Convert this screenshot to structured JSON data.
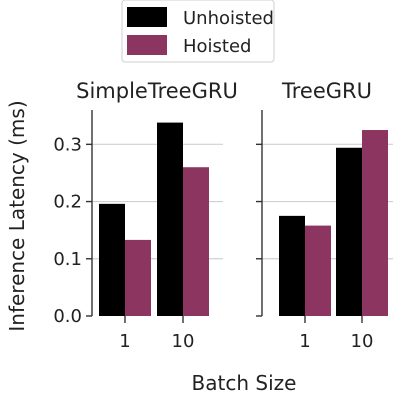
{
  "chart_data": {
    "type": "bar",
    "grid": "horizontal",
    "legend_position": "top-center",
    "xlabel": "Batch Size",
    "ylabel": "Inference Latency (ms)",
    "ylim": [
      0,
      0.36
    ],
    "yticks": [
      0.0,
      0.1,
      0.2,
      0.3
    ],
    "ytick_labels": [
      "0.0",
      "0.1",
      "0.2",
      "0.3"
    ],
    "categories": [
      "1",
      "10"
    ],
    "series_styles": [
      {
        "name": "Unhoisted",
        "color": "#000000"
      },
      {
        "name": "Hoisted",
        "color": "#8B3560"
      }
    ],
    "panels": [
      {
        "title": "SimpleTreeGRU",
        "series": [
          {
            "name": "Unhoisted",
            "values": [
              0.196,
              0.338
            ]
          },
          {
            "name": "Hoisted",
            "values": [
              0.133,
              0.26
            ]
          }
        ]
      },
      {
        "title": "TreeGRU",
        "series": [
          {
            "name": "Unhoisted",
            "values": [
              0.175,
              0.294
            ]
          },
          {
            "name": "Hoisted",
            "values": [
              0.158,
              0.325
            ]
          }
        ]
      }
    ]
  }
}
